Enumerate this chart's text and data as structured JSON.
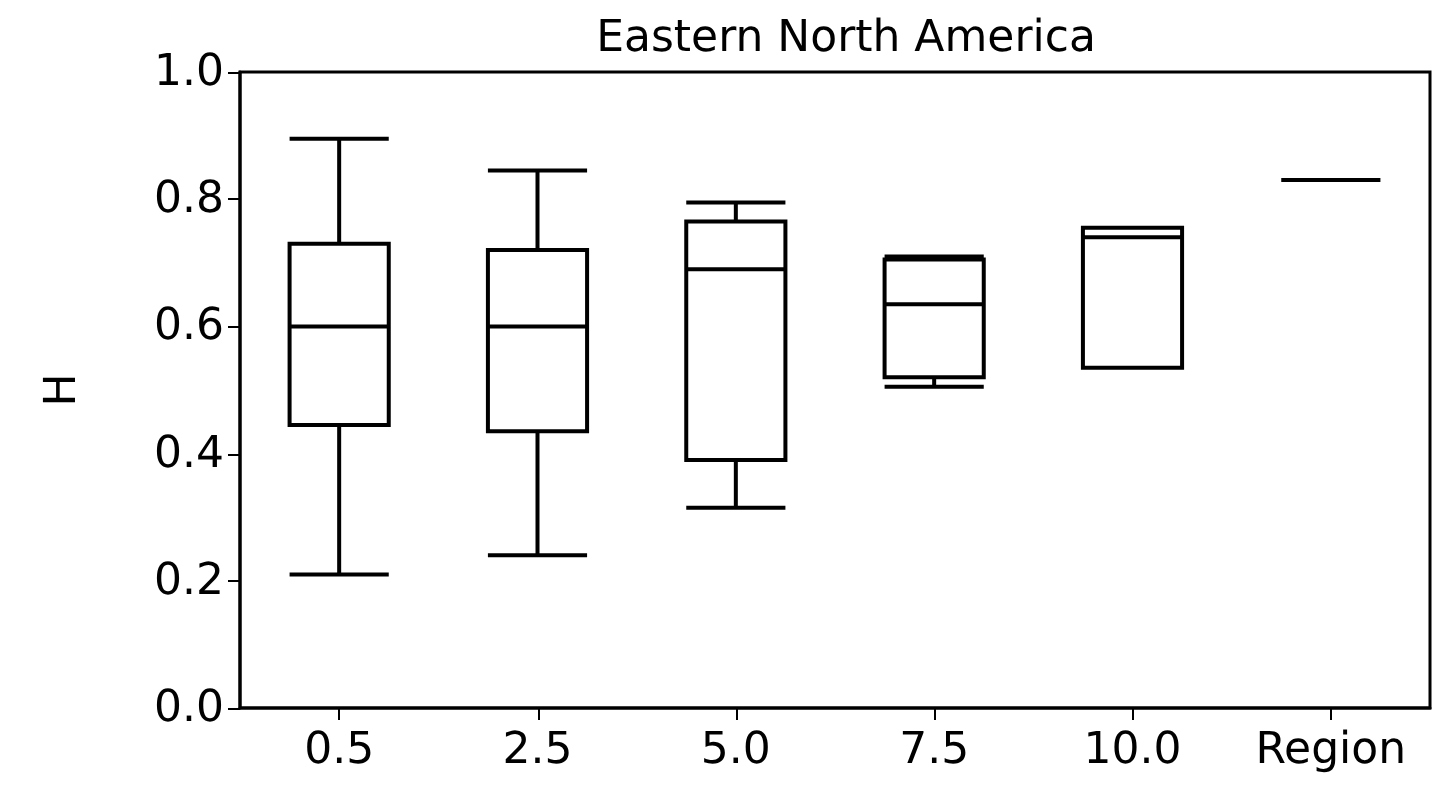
{
  "chart_data": {
    "type": "box",
    "title": "Eastern North America",
    "ylabel": "H",
    "color": "#000000",
    "grid": false,
    "categories": [
      "0.5",
      "2.5",
      "5.0",
      "7.5",
      "10.0",
      "Region"
    ],
    "boxes": [
      {
        "low": 0.21,
        "q1": 0.445,
        "median": 0.6,
        "q3": 0.73,
        "high": 0.895
      },
      {
        "low": 0.24,
        "q1": 0.435,
        "median": 0.6,
        "q3": 0.72,
        "high": 0.845
      },
      {
        "low": 0.315,
        "q1": 0.39,
        "median": 0.69,
        "q3": 0.765,
        "high": 0.795
      },
      {
        "low": 0.505,
        "q1": 0.52,
        "median": 0.635,
        "q3": 0.705,
        "high": 0.71
      },
      {
        "low": 0.535,
        "q1": 0.535,
        "median": 0.74,
        "q3": 0.755,
        "high": 0.755
      },
      {
        "low": 0.83,
        "q1": 0.83,
        "median": 0.83,
        "q3": 0.83,
        "high": 0.83
      }
    ],
    "ylim": [
      0,
      1
    ],
    "yticks": [
      {
        "value": 0,
        "label": "0.0"
      },
      0.2,
      0.4,
      0.6,
      0.8,
      {
        "value": 1,
        "label": "1.0"
      }
    ]
  }
}
